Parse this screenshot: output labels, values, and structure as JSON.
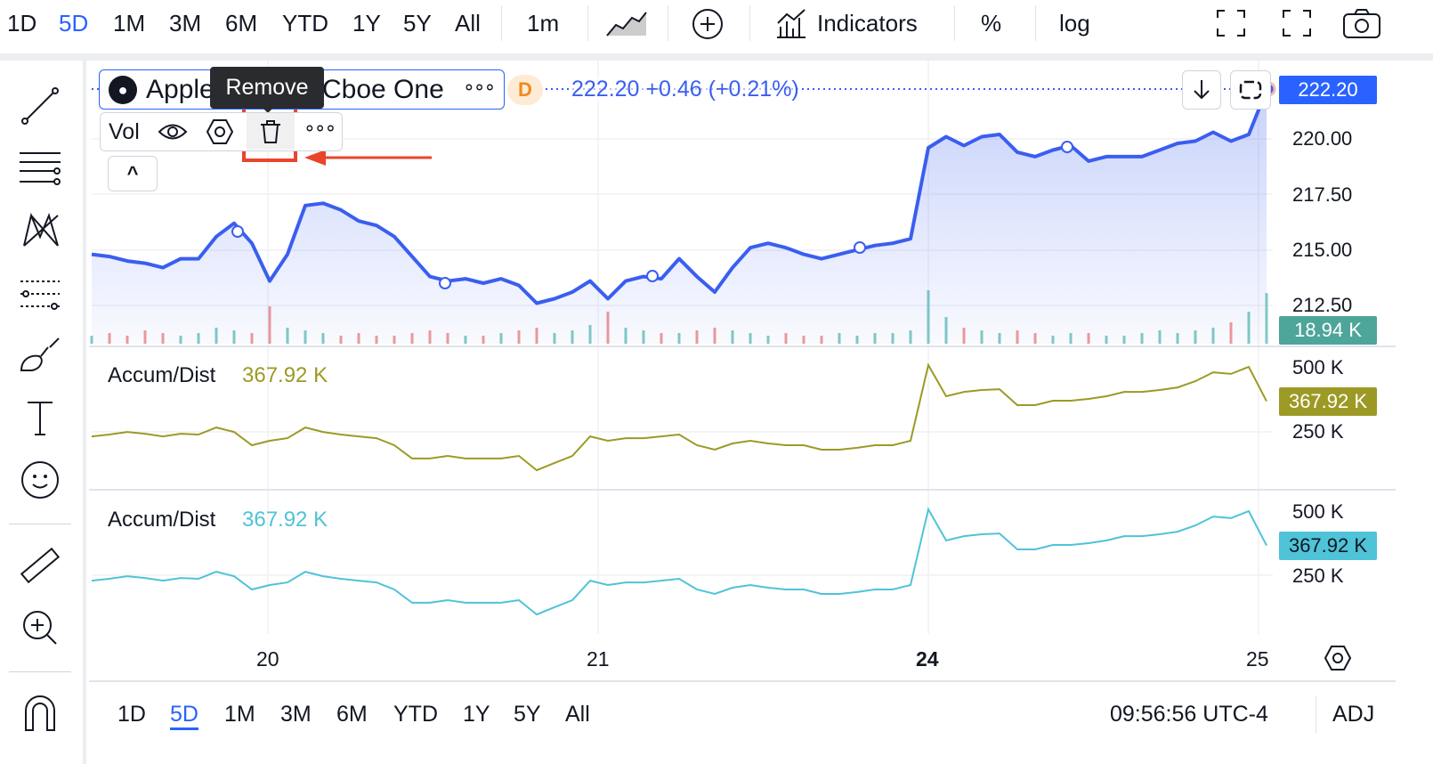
{
  "toolbar": {
    "ranges": [
      "1D",
      "5D",
      "1M",
      "3M",
      "6M",
      "YTD",
      "1Y",
      "5Y",
      "All"
    ],
    "active_range": "5D",
    "interval": "1m",
    "indicators_label": "Indicators",
    "percent_label": "%",
    "log_label": "log"
  },
  "legend": {
    "symbol_name": "Apple",
    "exchange": "Cboe One",
    "more": "∘∘∘",
    "badge": "D",
    "quote": "222.20 +0.46 (+0.21%)",
    "tooltip": "Remove",
    "vol_label": "Vol",
    "collapse": "^"
  },
  "panes": [
    {
      "label": "Accum/Dist",
      "value": "367.92 K",
      "color": "#9c9a25"
    },
    {
      "label": "Accum/Dist",
      "value": "367.92 K",
      "color": "#4fc3d8"
    }
  ],
  "price_axis": {
    "ticks": [
      "220.00",
      "217.50",
      "215.00",
      "212.50"
    ],
    "last_price": "222.20",
    "volume_last": "18.94 K",
    "ad_ticks": [
      "500 K",
      "250 K"
    ]
  },
  "time_axis": {
    "ticks": [
      "20",
      "21",
      "24",
      "25"
    ],
    "bold_tick": "24"
  },
  "bottom_bar": {
    "ranges": [
      "1D",
      "5D",
      "1M",
      "3M",
      "6M",
      "YTD",
      "1Y",
      "5Y",
      "All"
    ],
    "active_range": "5D",
    "clock": "09:56:56 UTC-4",
    "adj": "ADJ"
  },
  "colors": {
    "accent": "#2962ff",
    "price_line": "#3a5ef0",
    "volume_badge": "#4ea59a",
    "annotation": "#e8452c"
  },
  "chart_data": [
    {
      "type": "area",
      "series": [
        {
          "values": [
            214.8,
            214.7,
            214.5,
            214.4,
            214.2,
            214.6,
            214.6,
            215.6,
            216.2,
            215.3,
            213.6,
            214.8,
            217.0,
            217.1,
            216.8,
            216.3,
            216.1,
            215.6,
            214.7,
            213.8,
            213.6,
            213.7,
            213.5,
            213.7,
            213.4,
            212.6,
            212.8,
            213.1,
            213.6,
            212.8,
            213.6,
            213.8,
            213.7,
            214.6,
            213.8,
            213.1,
            214.2,
            215.1,
            215.3,
            215.1,
            214.8,
            214.6,
            214.8,
            215.0,
            215.2,
            215.3,
            215.5,
            219.6,
            220.1,
            219.7,
            220.1,
            220.2,
            219.4,
            219.2,
            219.5,
            219.7,
            219.0,
            219.2,
            219.2,
            219.2,
            219.5,
            219.8,
            219.9,
            220.3,
            219.9,
            220.2,
            222.2
          ]
        }
      ],
      "volume": [
        3,
        4,
        3,
        5,
        4,
        3,
        4,
        6,
        5,
        4,
        14,
        6,
        5,
        4,
        3,
        4,
        3,
        3,
        4,
        5,
        4,
        3,
        3,
        4,
        5,
        6,
        4,
        5,
        7,
        12,
        6,
        5,
        4,
        4,
        5,
        6,
        5,
        4,
        3,
        4,
        3,
        3,
        4,
        3,
        4,
        4,
        5,
        22,
        10,
        6,
        5,
        4,
        5,
        4,
        3,
        4,
        4,
        3,
        3,
        4,
        5,
        4,
        5,
        6,
        8,
        12,
        18.94
      ],
      "ylim": [
        211.5,
        222.5
      ]
    },
    {
      "type": "line",
      "series": [
        {
          "values": [
            233,
            240,
            250,
            243,
            233,
            243,
            240,
            267,
            250,
            199,
            216,
            226,
            267,
            250,
            240,
            233,
            226,
            199,
            148,
            148,
            158,
            148,
            148,
            148,
            158,
            103,
            131,
            158,
            233,
            216,
            226,
            226,
            233,
            240,
            199,
            182,
            206,
            216,
            206,
            199,
            199,
            182,
            182,
            189,
            199,
            199,
            216,
            507,
            387,
            404,
            411,
            414,
            353,
            353,
            370,
            370,
            377,
            387,
            404,
            404,
            411,
            421,
            445,
            479,
            473,
            500,
            368
          ]
        }
      ],
      "ylim": [
        150,
        520
      ]
    },
    {
      "type": "line",
      "series": [
        {
          "values": [
            233,
            240,
            250,
            243,
            233,
            243,
            240,
            267,
            250,
            199,
            216,
            226,
            267,
            250,
            240,
            233,
            226,
            199,
            148,
            148,
            158,
            148,
            148,
            148,
            158,
            103,
            131,
            158,
            233,
            216,
            226,
            226,
            233,
            240,
            199,
            182,
            206,
            216,
            206,
            199,
            199,
            182,
            182,
            189,
            199,
            199,
            216,
            507,
            387,
            404,
            411,
            414,
            353,
            353,
            370,
            370,
            377,
            387,
            404,
            404,
            411,
            421,
            445,
            479,
            473,
            500,
            368
          ]
        }
      ],
      "ylim": [
        150,
        520
      ]
    }
  ]
}
